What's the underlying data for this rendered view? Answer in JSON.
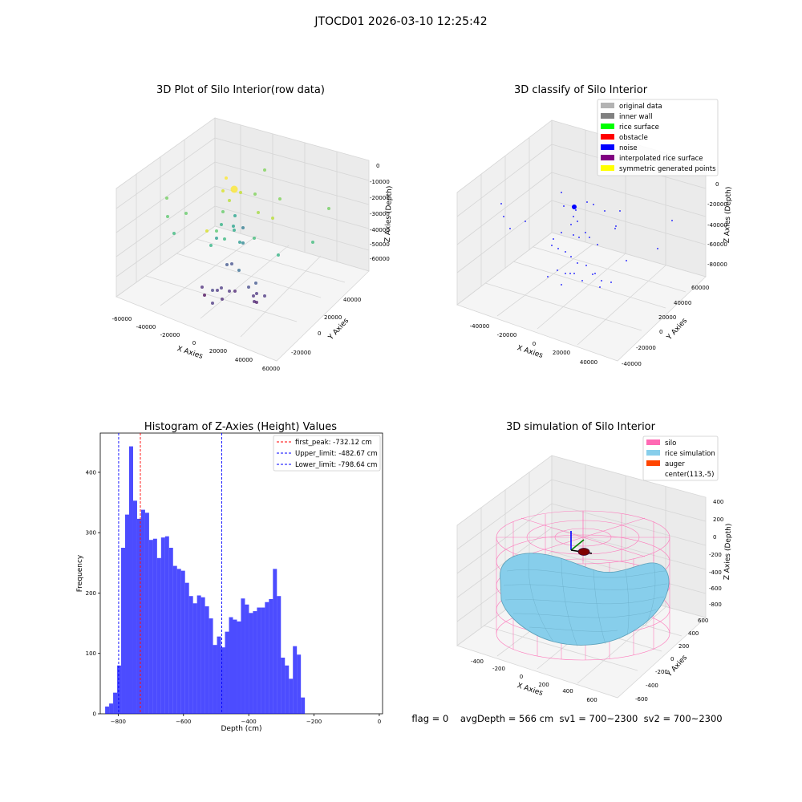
{
  "figure": {
    "suptitle": "JTOCD01 2026-03-10 12:25:42",
    "footer": "flag = 0    avgDepth = 566 cm  sv1 = 700~2300  sv2 = 700~2300"
  },
  "panel1": {
    "title": "3D Plot of Silo Interior(row data)",
    "xlabel": "X Axies",
    "ylabel": "Y Axies",
    "zlabel": "Z Axies (Depth)",
    "xticks": [
      "-60000",
      "-40000",
      "-20000",
      "0",
      "20000",
      "40000",
      "60000"
    ],
    "yticks": [
      "-20000",
      "0",
      "20000",
      "40000"
    ],
    "zticks": [
      "0",
      "-10000",
      "-20000",
      "-30000",
      "-40000",
      "-50000",
      "-60000"
    ]
  },
  "panel2": {
    "title": "3D classify of Silo Interior",
    "xlabel": "X Axies",
    "ylabel": "Y Axies",
    "zlabel": "Z Axies (Depth)",
    "xticks": [
      "-40000",
      "-20000",
      "0",
      "20000",
      "40000"
    ],
    "yticks": [
      "-40000",
      "-20000",
      "0",
      "20000",
      "40000",
      "60000"
    ],
    "zticks": [
      "0",
      "-20000",
      "-40000",
      "-60000",
      "-80000"
    ],
    "legend": [
      {
        "label": "original data",
        "color": "#b3b3b3"
      },
      {
        "label": "inner wall",
        "color": "#808080"
      },
      {
        "label": "rice surface",
        "color": "#00ff00"
      },
      {
        "label": "obstacle",
        "color": "#ff0000"
      },
      {
        "label": "noise",
        "color": "#0000ff"
      },
      {
        "label": "interpolated rice surface",
        "color": "#800080"
      },
      {
        "label": "symmetric generated points",
        "color": "#ffff00"
      }
    ]
  },
  "panel4": {
    "title": "3D simulation of Silo Interior",
    "xlabel": "X Axies",
    "ylabel": "Y Axies",
    "zlabel": "Z Axies (Depth)",
    "xticks": [
      "-400",
      "-200",
      "0",
      "200",
      "400",
      "600"
    ],
    "yticks": [
      "-600",
      "-400",
      "-200",
      "0",
      "200",
      "400",
      "600"
    ],
    "zticks": [
      "400",
      "200",
      "0",
      "-200",
      "-400",
      "-600",
      "-800"
    ],
    "legend": [
      {
        "label": "silo",
        "color": "#ff69b4"
      },
      {
        "label": "rice simulation",
        "color": "#87ceeb"
      },
      {
        "label": "auger",
        "color": "#ff4500"
      },
      {
        "label": "center(113,-5)",
        "color": "none"
      }
    ]
  },
  "chart_data": {
    "type": "bar",
    "title": "Histogram of Z-Axies (Height) Values",
    "xlabel": "Depth (cm)",
    "ylabel": "Frequency",
    "xlim": [
      -855,
      10
    ],
    "ylim": [
      0,
      465
    ],
    "xticks": [
      -800,
      -600,
      -400,
      -200,
      0
    ],
    "yticks": [
      0,
      100,
      200,
      300,
      400
    ],
    "bin_start": -840,
    "bin_width": 12.24,
    "values": [
      12,
      17,
      35,
      80,
      275,
      330,
      443,
      353,
      323,
      338,
      333,
      288,
      290,
      258,
      292,
      294,
      275,
      245,
      240,
      237,
      217,
      195,
      183,
      196,
      193,
      178,
      158,
      114,
      128,
      110,
      136,
      160,
      156,
      153,
      191,
      181,
      167,
      170,
      176,
      176,
      185,
      190,
      240,
      195,
      93,
      80,
      58,
      112,
      98,
      27
    ],
    "color": "#0000ff",
    "lines": [
      {
        "x": -732.12,
        "color": "#ff0000",
        "label": "first_peak: -732.12 cm"
      },
      {
        "x": -482.67,
        "color": "#0000ff",
        "label": "Upper_limit: -482.67 cm"
      },
      {
        "x": -798.64,
        "color": "#0000ff",
        "label": "Lower_limit: -798.64 cm"
      }
    ],
    "legend_position": "upper right"
  }
}
